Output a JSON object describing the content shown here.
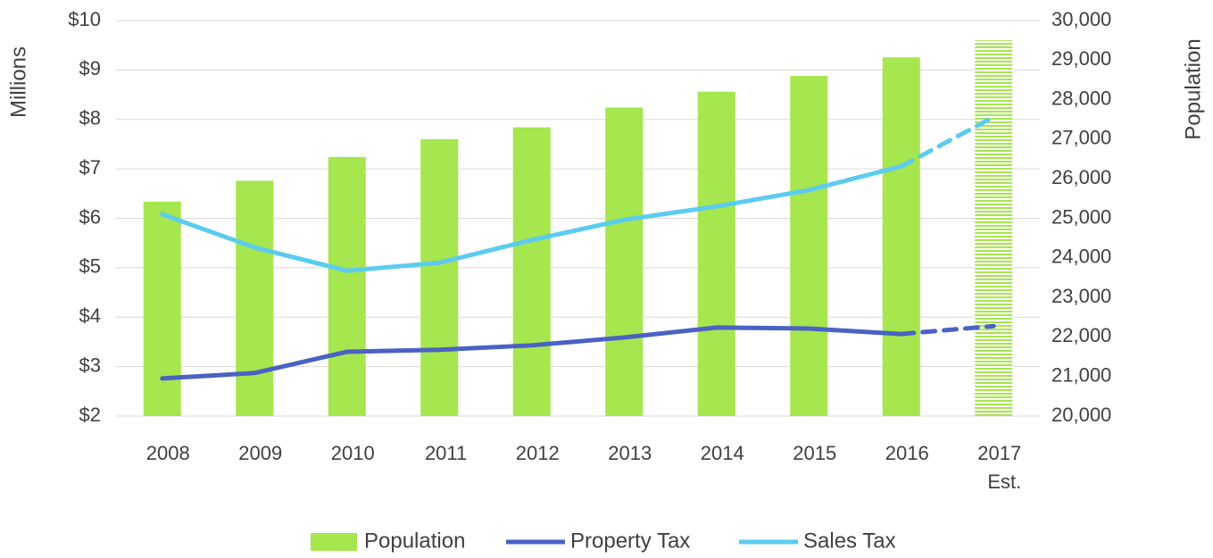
{
  "chart_data": {
    "type": "bar_line",
    "y_axis_label": "Millions",
    "y2_axis_label": "Population",
    "categories": [
      "2008",
      "2009",
      "2010",
      "2011",
      "2012",
      "2013",
      "2014",
      "2015",
      "2016",
      "2017 Est."
    ],
    "series": [
      {
        "name": "Population",
        "type": "bar",
        "axis": "y2",
        "color": "#a6e64f",
        "values": [
          25420,
          25950,
          26550,
          27000,
          27300,
          27800,
          28200,
          28600,
          29070,
          29500
        ]
      },
      {
        "name": "Property Tax",
        "type": "line",
        "color": "#4a62c4",
        "values": [
          2.76,
          2.87,
          3.3,
          3.34,
          3.43,
          3.59,
          3.79,
          3.77,
          3.66,
          3.82
        ]
      },
      {
        "name": "Sales Tax",
        "type": "line",
        "color": "#5ccbf0",
        "values": [
          6.08,
          5.41,
          4.94,
          5.1,
          5.56,
          5.97,
          6.24,
          6.57,
          7.05,
          8.05
        ]
      }
    ],
    "estimate_last": true,
    "ylim": [
      2,
      10
    ],
    "yticks": [
      {
        "value": 2,
        "label": "$2"
      },
      {
        "value": 3,
        "label": "$3"
      },
      {
        "value": 4,
        "label": "$4"
      },
      {
        "value": 5,
        "label": "$5"
      },
      {
        "value": 6,
        "label": "$6"
      },
      {
        "value": 7,
        "label": "$7"
      },
      {
        "value": 8,
        "label": "$8"
      },
      {
        "value": 9,
        "label": "$9"
      },
      {
        "value": 10,
        "label": "$10"
      }
    ],
    "y2lim": [
      20000,
      30000
    ],
    "y2ticks": [
      {
        "value": 20000,
        "label": "20,000"
      },
      {
        "value": 21000,
        "label": "21,000"
      },
      {
        "value": 22000,
        "label": "22,000"
      },
      {
        "value": 23000,
        "label": "23,000"
      },
      {
        "value": 24000,
        "label": "24,000"
      },
      {
        "value": 25000,
        "label": "25,000"
      },
      {
        "value": 26000,
        "label": "26,000"
      },
      {
        "value": 27000,
        "label": "27,000"
      },
      {
        "value": 28000,
        "label": "28,000"
      },
      {
        "value": 29000,
        "label": "29,000"
      },
      {
        "value": 30000,
        "label": "30,000"
      }
    ],
    "grid": true,
    "legend": "bottom"
  }
}
